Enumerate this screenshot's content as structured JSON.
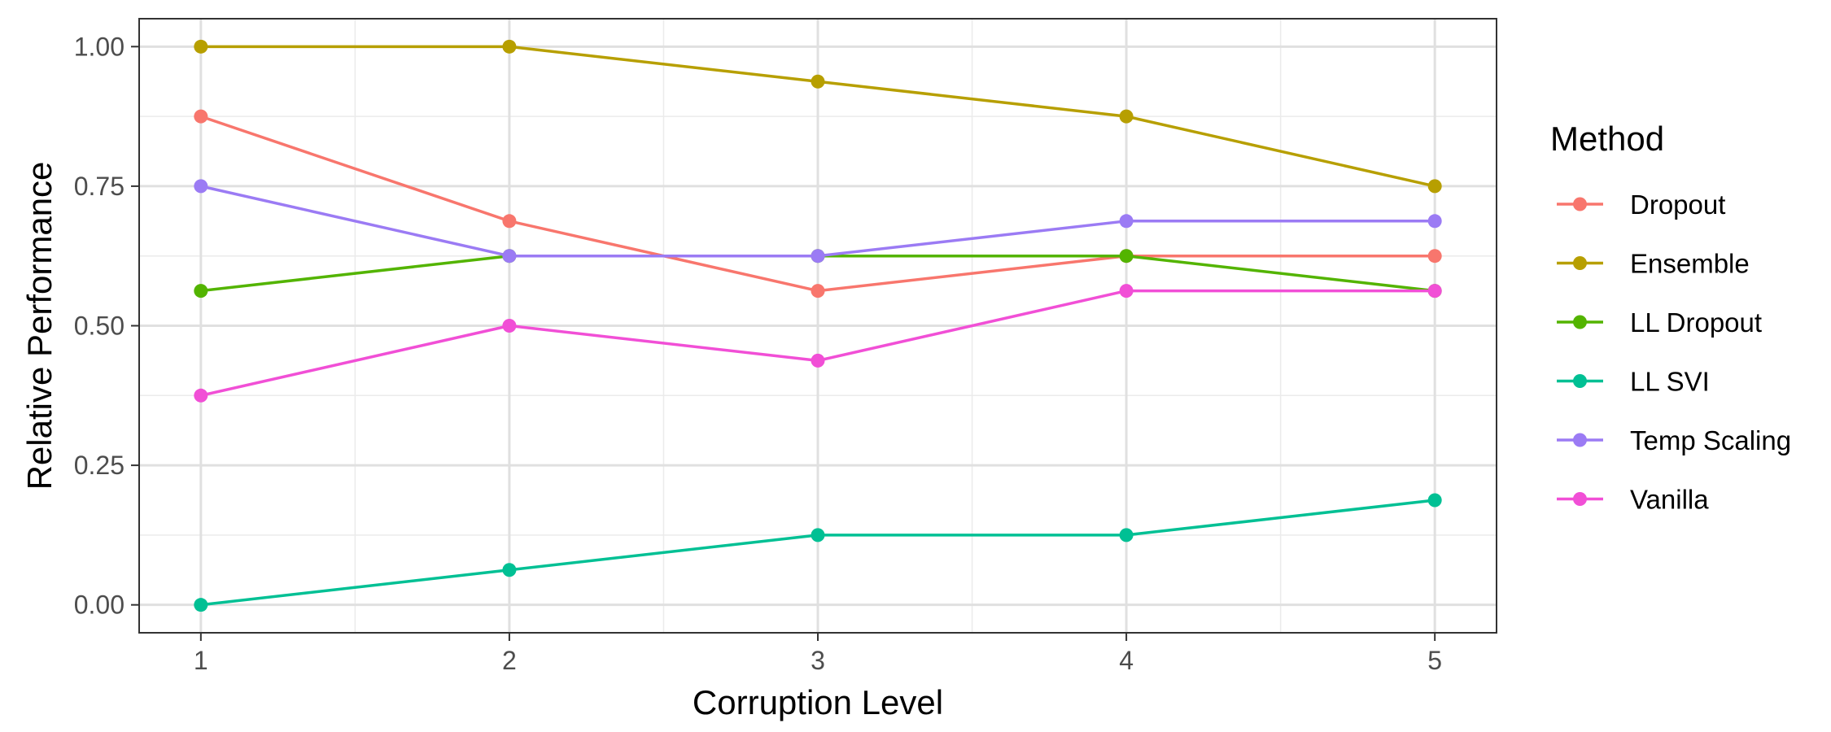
{
  "chart_data": {
    "type": "line",
    "xlabel": "Corruption Level",
    "ylabel": "Relative Performance",
    "x": [
      1,
      2,
      3,
      4,
      5
    ],
    "x_ticks": [
      "1",
      "2",
      "3",
      "4",
      "5"
    ],
    "xlim": [
      0.8,
      5.2
    ],
    "ylim": [
      -0.05,
      1.05
    ],
    "y_ticks": [
      "0.00",
      "0.25",
      "0.50",
      "0.75",
      "1.00"
    ],
    "y_tick_values": [
      0,
      0.25,
      0.5,
      0.75,
      1.0
    ],
    "grid": true,
    "legend": {
      "title": "Method",
      "position": "right"
    },
    "series": [
      {
        "name": "Dropout",
        "color": "#F8766D",
        "values": [
          0.875,
          0.6875,
          0.5625,
          0.625,
          0.625
        ]
      },
      {
        "name": "Ensemble",
        "color": "#B79F00",
        "values": [
          1.0,
          1.0,
          0.9375,
          0.875,
          0.75
        ]
      },
      {
        "name": "LL Dropout",
        "color": "#53B400",
        "values": [
          0.5625,
          0.625,
          0.625,
          0.625,
          0.5625
        ]
      },
      {
        "name": "LL SVI",
        "color": "#00C094",
        "values": [
          0.0,
          0.0625,
          0.125,
          0.125,
          0.1875
        ]
      },
      {
        "name": "Temp Scaling",
        "color": "#9B7BF4",
        "values": [
          0.75,
          0.625,
          0.625,
          0.6875,
          0.6875
        ]
      },
      {
        "name": "Vanilla",
        "color": "#F14FD6",
        "values": [
          0.375,
          0.5,
          0.4375,
          0.5625,
          0.5625
        ]
      }
    ]
  }
}
